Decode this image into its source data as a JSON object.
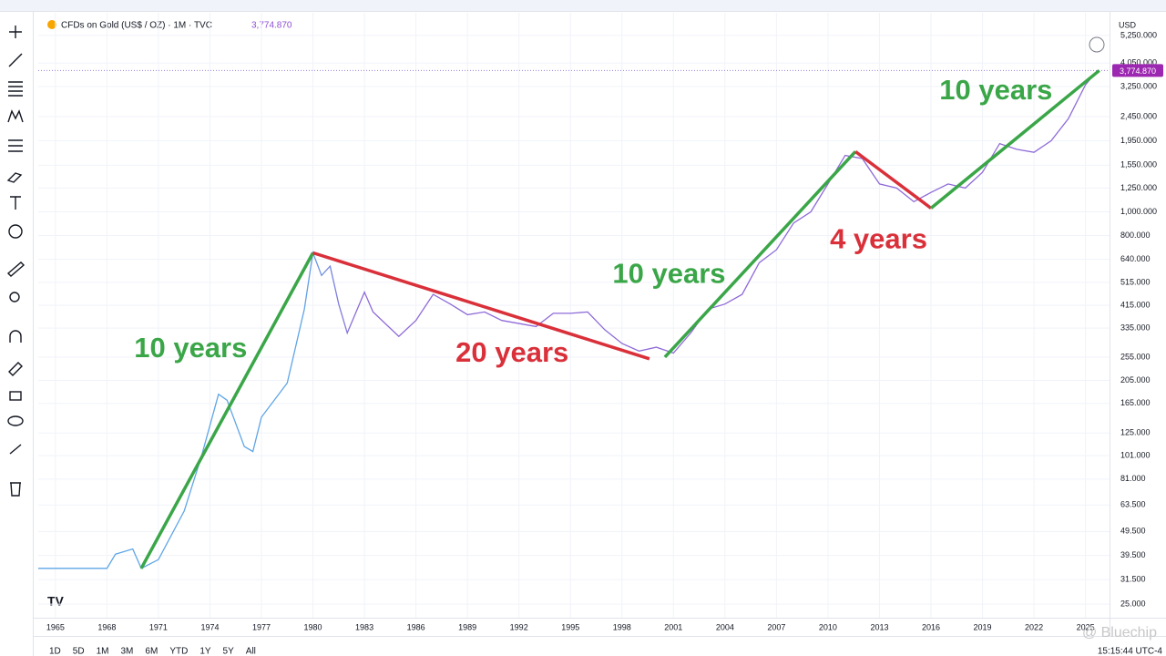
{
  "chart_data": {
    "type": "line",
    "symbol": "CFDs on Gold (US$ / OZ) · 1M · TVC",
    "currency": "USD",
    "last_price": {
      "value": 3774.87,
      "label": "3,774.870"
    },
    "log_scale": true,
    "grid": true,
    "line_gradient": [
      "#5ea5e6",
      "#8e6ad8"
    ],
    "x": [
      1964,
      1968,
      1968.5,
      1969.5,
      1970,
      1971,
      1972.5,
      1973.5,
      1974.5,
      1975,
      1976,
      1976.5,
      1977,
      1978.5,
      1979.5,
      1980,
      1980.5,
      1981,
      1981.5,
      1982,
      1983,
      1983.5,
      1985,
      1986,
      1987,
      1988,
      1989,
      1990,
      1991,
      1993,
      1994,
      1995,
      1996,
      1997,
      1998,
      1999,
      2000,
      2001,
      2002,
      2003,
      2004,
      2005,
      2006,
      2007,
      2008,
      2009,
      2010,
      2011,
      2012,
      2013,
      2014,
      2015,
      2016,
      2017,
      2018,
      2019,
      2020,
      2021,
      2022,
      2023,
      2024,
      2025,
      2025.7
    ],
    "series": [
      {
        "values": [
          35,
          35,
          40,
          42,
          35,
          38,
          60,
          100,
          180,
          170,
          110,
          105,
          145,
          200,
          400,
          680,
          550,
          600,
          420,
          320,
          470,
          390,
          310,
          360,
          460,
          420,
          380,
          390,
          360,
          340,
          385,
          385,
          390,
          330,
          290,
          270,
          280,
          265,
          320,
          400,
          420,
          460,
          620,
          700,
          900,
          1000,
          1300,
          1700,
          1650,
          1300,
          1250,
          1100,
          1200,
          1300,
          1250,
          1450,
          1900,
          1800,
          1750,
          1950,
          2400,
          3300,
          3774.87
        ]
      }
    ],
    "xlim": [
      1964,
      2026.4
    ],
    "ylim": [
      22,
      6500
    ],
    "xticks": [
      1965,
      1968,
      1971,
      1974,
      1977,
      1980,
      1983,
      1986,
      1989,
      1992,
      1995,
      1998,
      2001,
      2004,
      2007,
      2010,
      2013,
      2016,
      2019,
      2022,
      2025
    ],
    "yticks": [
      {
        "value": 25,
        "label": "25.000"
      },
      {
        "value": 31.5,
        "label": "31.500"
      },
      {
        "value": 39.5,
        "label": "39.500"
      },
      {
        "value": 49.5,
        "label": "49.500"
      },
      {
        "value": 63.5,
        "label": "63.500"
      },
      {
        "value": 81,
        "label": "81.000"
      },
      {
        "value": 101,
        "label": "101.000"
      },
      {
        "value": 125,
        "label": "125.000"
      },
      {
        "value": 165,
        "label": "165.000"
      },
      {
        "value": 205,
        "label": "205.000"
      },
      {
        "value": 255,
        "label": "255.000"
      },
      {
        "value": 335,
        "label": "335.000"
      },
      {
        "value": 415,
        "label": "415.000"
      },
      {
        "value": 515,
        "label": "515.000"
      },
      {
        "value": 640,
        "label": "640.000"
      },
      {
        "value": 800,
        "label": "800.000"
      },
      {
        "value": 1000,
        "label": "1,000.000"
      },
      {
        "value": 1250,
        "label": "1,250.000"
      },
      {
        "value": 1550,
        "label": "1,550.000"
      },
      {
        "value": 1950,
        "label": "1,950.000"
      },
      {
        "value": 2450,
        "label": "2,450.000"
      },
      {
        "value": 3250,
        "label": "3,250.000"
      },
      {
        "value": 4050,
        "label": "4,050.000"
      },
      {
        "value": 5250,
        "label": "5,250.000"
      }
    ],
    "trend_lines": [
      {
        "label": "10 years",
        "color": "#3aa648",
        "x": [
          1970,
          1980
        ],
        "y": [
          35,
          680
        ]
      },
      {
        "label": "20 years",
        "color": "#d9303a",
        "x": [
          1980,
          1999.6
        ],
        "y": [
          680,
          251
        ]
      },
      {
        "label": "10 years",
        "color": "#3aa648",
        "x": [
          2000.5,
          2011.6
        ],
        "y": [
          255,
          1762
        ]
      },
      {
        "label": "4 years",
        "color": "#d9303a",
        "x": [
          2011.6,
          2016
        ],
        "y": [
          1762,
          1035
        ]
      },
      {
        "label": "10 years",
        "color": "#3aa648",
        "x": [
          2016,
          2025.8
        ],
        "y": [
          1035,
          3775
        ]
      }
    ]
  },
  "timeframes": [
    "1D",
    "5D",
    "1M",
    "3M",
    "6M",
    "YTD",
    "1Y",
    "5Y",
    "All"
  ],
  "clock": "15:15:44 UTC-4",
  "watermark": "@ Bluechip"
}
